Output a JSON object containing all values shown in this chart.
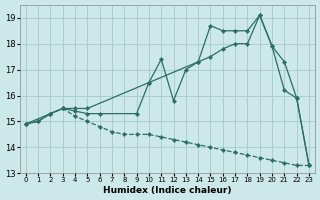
{
  "xlabel": "Humidex (Indice chaleur)",
  "xlim": [
    -0.5,
    23.5
  ],
  "ylim": [
    13,
    19.5
  ],
  "yticks": [
    13,
    14,
    15,
    16,
    17,
    18,
    19
  ],
  "xticks": [
    0,
    1,
    2,
    3,
    4,
    5,
    6,
    7,
    8,
    9,
    10,
    11,
    12,
    13,
    14,
    15,
    16,
    17,
    18,
    19,
    20,
    21,
    22,
    23
  ],
  "background_color": "#cde8e8",
  "grid_color": "#aacece",
  "line_color": "#2b6e62",
  "line_A_x": [
    0,
    1,
    2,
    3,
    4,
    5,
    10,
    14,
    15,
    16,
    17,
    18,
    19,
    20,
    21,
    22,
    23
  ],
  "line_A_y": [
    14.9,
    15.0,
    15.3,
    15.5,
    15.5,
    15.5,
    16.5,
    17.3,
    17.5,
    17.8,
    18.0,
    18.0,
    19.1,
    17.9,
    17.3,
    15.9,
    13.3
  ],
  "line_B_x": [
    0,
    2,
    3,
    4,
    5,
    6,
    9,
    10,
    11,
    12,
    13,
    14,
    15,
    16,
    17,
    18,
    19,
    20,
    21,
    22,
    23
  ],
  "line_B_y": [
    14.9,
    15.3,
    15.5,
    15.4,
    15.3,
    15.3,
    15.3,
    16.5,
    17.4,
    15.8,
    17.0,
    17.3,
    18.7,
    18.5,
    18.5,
    18.5,
    19.1,
    17.9,
    16.2,
    15.9,
    13.3
  ],
  "line_C_x": [
    0,
    1,
    2,
    3,
    4,
    5,
    6,
    7,
    8,
    9,
    10,
    11,
    12,
    13,
    14,
    15,
    16,
    17,
    18,
    19,
    20,
    21,
    22,
    23
  ],
  "line_C_y": [
    14.9,
    15.0,
    15.3,
    15.5,
    15.2,
    15.0,
    14.8,
    14.6,
    14.5,
    14.5,
    14.5,
    14.4,
    14.3,
    14.2,
    14.1,
    14.0,
    13.9,
    13.8,
    13.7,
    13.6,
    13.5,
    13.4,
    13.3,
    13.3
  ]
}
